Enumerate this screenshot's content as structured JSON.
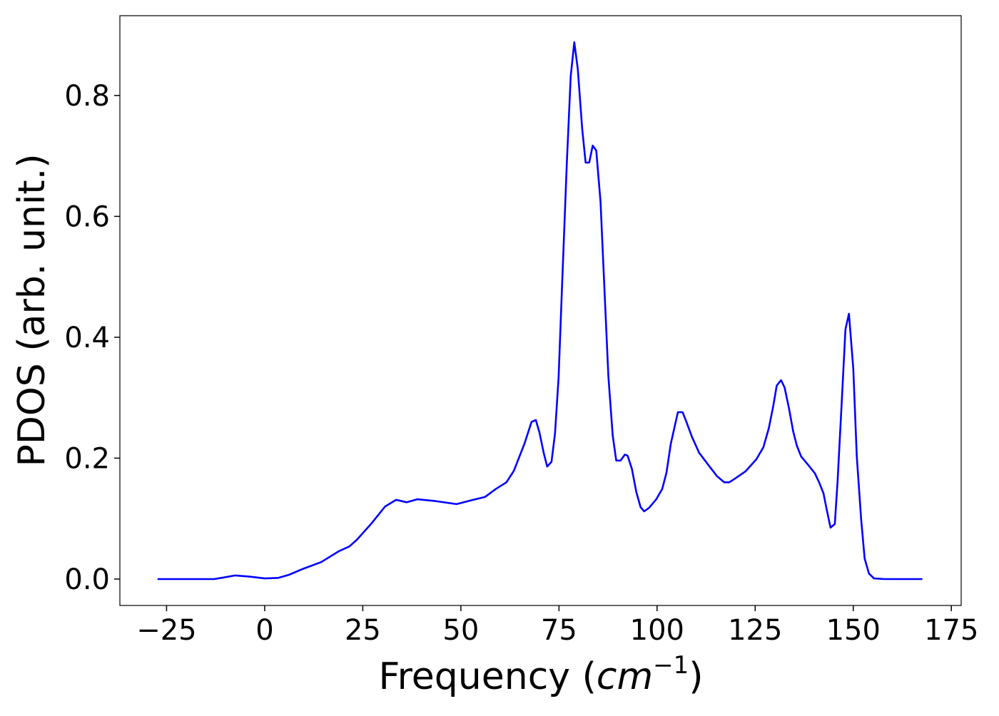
{
  "chart_data": {
    "type": "line",
    "xlabel": [
      "Frequency (",
      "cm",
      "−1",
      ")"
    ],
    "ylabel": "PDOS (arb. unit.)",
    "xlim": [
      -36.9,
      177.5
    ],
    "ylim": [
      -0.0437,
      0.932
    ],
    "xticks": [
      {
        "value": -25,
        "label": "−25"
      },
      0,
      25,
      50,
      75,
      100,
      125,
      150,
      175
    ],
    "yticks": [
      {
        "value": 0,
        "label": "0.0"
      },
      0.2,
      0.4,
      0.6,
      0.8
    ],
    "series": [
      {
        "color": "#0000ff",
        "x": [
          -27.3,
          -12.9,
          -11,
          -7.5,
          -3.8,
          0,
          3.5,
          6.2,
          9.8,
          14.4,
          18.9,
          21.6,
          23.5,
          27.1,
          30.7,
          33.5,
          36.2,
          38.9,
          43.5,
          48.9,
          52.5,
          56.2,
          58.9,
          61.6,
          63.5,
          66.2,
          68,
          69.1,
          70,
          71.1,
          72,
          73.1,
          74,
          74.9,
          75.8,
          77,
          78,
          78.9,
          79.8,
          80.9,
          81.8,
          82.7,
          83.6,
          84.5,
          85.6,
          86.7,
          87.6,
          88.7,
          89.6,
          90.7,
          91.8,
          92.5,
          93.6,
          94.7,
          95.8,
          96.7,
          98,
          99.8,
          101.3,
          102.4,
          103.5,
          104.4,
          105.3,
          106.5,
          107.6,
          108.9,
          110.7,
          113.5,
          115.3,
          117.1,
          118.4,
          119.8,
          122.5,
          125.3,
          127.1,
          128.5,
          129.6,
          130.5,
          131.6,
          132.5,
          133.6,
          134.7,
          135.6,
          136.7,
          138.5,
          140.2,
          141.3,
          142.4,
          143.3,
          144.2,
          145.3,
          146,
          147.1,
          148,
          148.9,
          150,
          150.9,
          152,
          152.9,
          154,
          155.3,
          158,
          167.6
        ],
        "values": [
          0,
          0,
          0.002,
          0.006,
          0.004,
          0.001,
          0.002,
          0.007,
          0.017,
          0.028,
          0.046,
          0.054,
          0.065,
          0.091,
          0.12,
          0.131,
          0.127,
          0.132,
          0.129,
          0.124,
          0.13,
          0.136,
          0.149,
          0.16,
          0.179,
          0.224,
          0.26,
          0.263,
          0.243,
          0.209,
          0.186,
          0.194,
          0.241,
          0.333,
          0.486,
          0.687,
          0.832,
          0.888,
          0.844,
          0.746,
          0.689,
          0.689,
          0.717,
          0.709,
          0.624,
          0.463,
          0.335,
          0.237,
          0.196,
          0.196,
          0.206,
          0.204,
          0.182,
          0.144,
          0.119,
          0.112,
          0.118,
          0.132,
          0.149,
          0.176,
          0.224,
          0.25,
          0.276,
          0.276,
          0.258,
          0.235,
          0.209,
          0.185,
          0.17,
          0.16,
          0.16,
          0.166,
          0.178,
          0.198,
          0.218,
          0.25,
          0.286,
          0.32,
          0.329,
          0.317,
          0.283,
          0.244,
          0.221,
          0.203,
          0.189,
          0.175,
          0.16,
          0.142,
          0.113,
          0.085,
          0.091,
          0.162,
          0.297,
          0.413,
          0.439,
          0.348,
          0.203,
          0.099,
          0.034,
          0.009,
          0.001,
          0,
          0
        ]
      }
    ]
  }
}
